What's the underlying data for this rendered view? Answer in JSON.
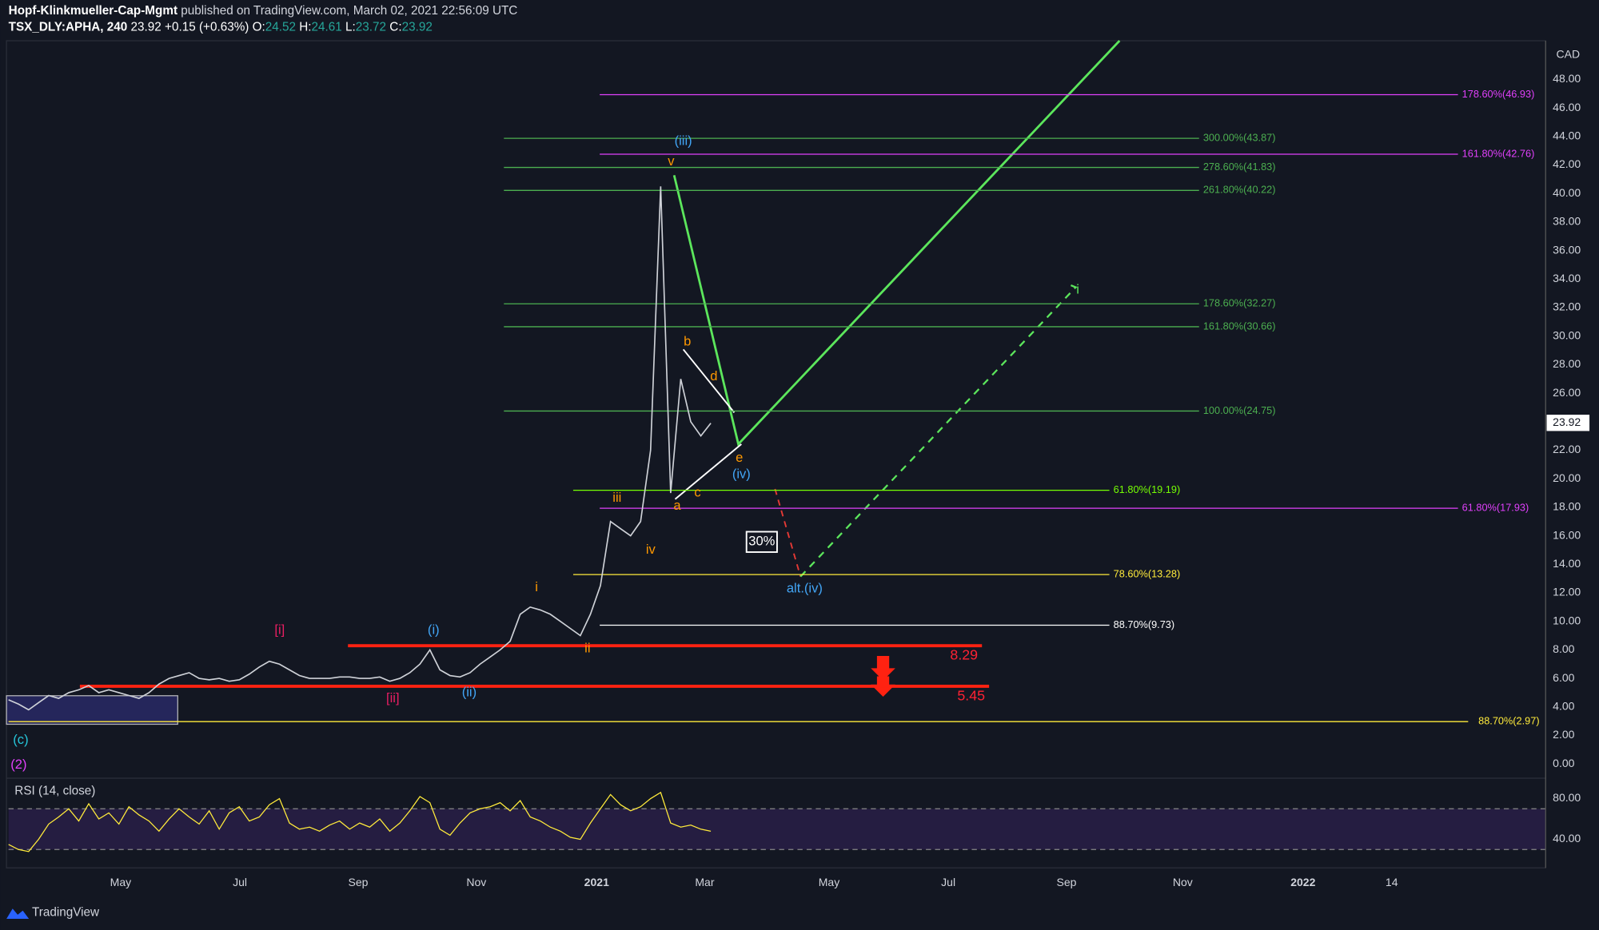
{
  "header": {
    "publisher": "Hopf-Klinkmueller-Cap-Mgmt",
    "published": "published on TradingView.com, March 02, 2021 22:56:09 UTC",
    "symbol": "TSX_DLY:APHA, 240",
    "last": "23.92",
    "change": "+0.15 (+0.63%)",
    "o_label": "O:",
    "o": "24.52",
    "h_label": "H:",
    "h": "24.61",
    "l_label": "L:",
    "l": "23.72",
    "c_label": "C:",
    "c": "23.92"
  },
  "price_axis": {
    "currency": "CAD",
    "ticks": [
      {
        "value": 48,
        "label": "48.00"
      },
      {
        "value": 46,
        "label": "46.00"
      },
      {
        "value": 44,
        "label": "44.00"
      },
      {
        "value": 42,
        "label": "42.00"
      },
      {
        "value": 40,
        "label": "40.00"
      },
      {
        "value": 38,
        "label": "38.00"
      },
      {
        "value": 36,
        "label": "36.00"
      },
      {
        "value": 34,
        "label": "34.00"
      },
      {
        "value": 32,
        "label": "32.00"
      },
      {
        "value": 30,
        "label": "30.00"
      },
      {
        "value": 28,
        "label": "28.00"
      },
      {
        "value": 26,
        "label": "26.00"
      },
      {
        "value": 24,
        "label": "24.00"
      },
      {
        "value": 22,
        "label": "22.00"
      },
      {
        "value": 20,
        "label": "20.00"
      },
      {
        "value": 18,
        "label": "18.00"
      },
      {
        "value": 16,
        "label": "16.00"
      },
      {
        "value": 14,
        "label": "14.00"
      },
      {
        "value": 12,
        "label": "12.00"
      },
      {
        "value": 10,
        "label": "10.00"
      },
      {
        "value": 8,
        "label": "8.00"
      },
      {
        "value": 6,
        "label": "6.00"
      },
      {
        "value": 4,
        "label": "4.00"
      },
      {
        "value": 2,
        "label": "2.00"
      },
      {
        "value": 0,
        "label": "0.00"
      }
    ],
    "current": {
      "value": 23.92,
      "label": "23.92"
    }
  },
  "time_axis": [
    "May",
    "Jul",
    "Sep",
    "Nov",
    "2021",
    "Mar",
    "May",
    "Jul",
    "Sep",
    "Nov",
    "2022",
    "14"
  ],
  "price": [
    4.5,
    4.2,
    3.8,
    4.3,
    4.8,
    4.6,
    5.0,
    5.2,
    5.5,
    5.0,
    5.2,
    5.0,
    4.8,
    4.6,
    5.0,
    5.6,
    6.0,
    6.2,
    6.4,
    6.0,
    5.9,
    6.0,
    5.8,
    5.9,
    6.3,
    6.8,
    7.2,
    7.0,
    6.6,
    6.2,
    6.0,
    6.0,
    6.0,
    6.1,
    6.1,
    6.0,
    6.0,
    6.1,
    5.8,
    6.0,
    6.4,
    7.0,
    8.0,
    6.6,
    6.2,
    6.1,
    6.4,
    7.0,
    7.5,
    8.0,
    8.6,
    10.5,
    11.0,
    10.8,
    10.5,
    10.0,
    9.5,
    9.0,
    10.5,
    12.5,
    17.0,
    16.5,
    16.0,
    17.0,
    22.0,
    40.5,
    19.0,
    27.0,
    24.0,
    23.0,
    23.9
  ],
  "levels": [
    {
      "label": "178.60%(46.93)",
      "value": 46.93
    },
    {
      "label": "300.00%(43.87)",
      "value": 43.87
    },
    {
      "label": "161.80%(42.76)",
      "value": 42.76
    },
    {
      "label": "278.60%(41.83)",
      "value": 41.83
    },
    {
      "label": "261.80%(40.22)",
      "value": 40.22
    },
    {
      "label": "178.60%(32.27)",
      "value": 32.27
    },
    {
      "label": "161.80%(30.66)",
      "value": 30.66
    },
    {
      "label": "100.00%(24.75)",
      "value": 24.75
    },
    {
      "label": "61.80%(19.19)",
      "value": 19.19
    },
    {
      "label": "61.80%(17.93)",
      "value": 17.93
    },
    {
      "label": "78.60%(13.28)",
      "value": 13.28
    },
    {
      "label": "88.70%(9.73)",
      "value": 9.73
    },
    {
      "label": "88.70%(2.97)",
      "value": 2.97
    }
  ],
  "supports": [
    {
      "label": "8.29",
      "value": 8.29
    },
    {
      "label": "5.45",
      "value": 5.45
    }
  ],
  "waves": [
    "(iii)",
    "v",
    "b",
    "d",
    "e",
    "(iv)",
    "c",
    "a",
    "iii",
    "iv",
    "i",
    "ii",
    "(i)",
    "(ii)",
    "[i]",
    "[ii]",
    "alt.(iv)",
    "30%",
    "(c)",
    "(2)",
    "i"
  ],
  "rsi": {
    "title": "RSI (14, close)",
    "ticks": [
      {
        "value": 80,
        "label": "80.00"
      },
      {
        "value": 40,
        "label": "40.00"
      }
    ],
    "values": [
      35,
      30,
      28,
      40,
      55,
      62,
      70,
      58,
      75,
      60,
      66,
      55,
      72,
      64,
      58,
      48,
      60,
      70,
      62,
      55,
      68,
      50,
      66,
      72,
      58,
      62,
      74,
      80,
      56,
      50,
      52,
      48,
      54,
      58,
      50,
      56,
      52,
      60,
      48,
      56,
      68,
      82,
      76,
      50,
      44,
      56,
      66,
      70,
      72,
      76,
      68,
      78,
      62,
      58,
      52,
      48,
      42,
      40,
      56,
      70,
      84,
      74,
      68,
      72,
      80,
      86,
      56,
      52,
      54,
      50,
      48
    ]
  },
  "footer": "TradingView"
}
